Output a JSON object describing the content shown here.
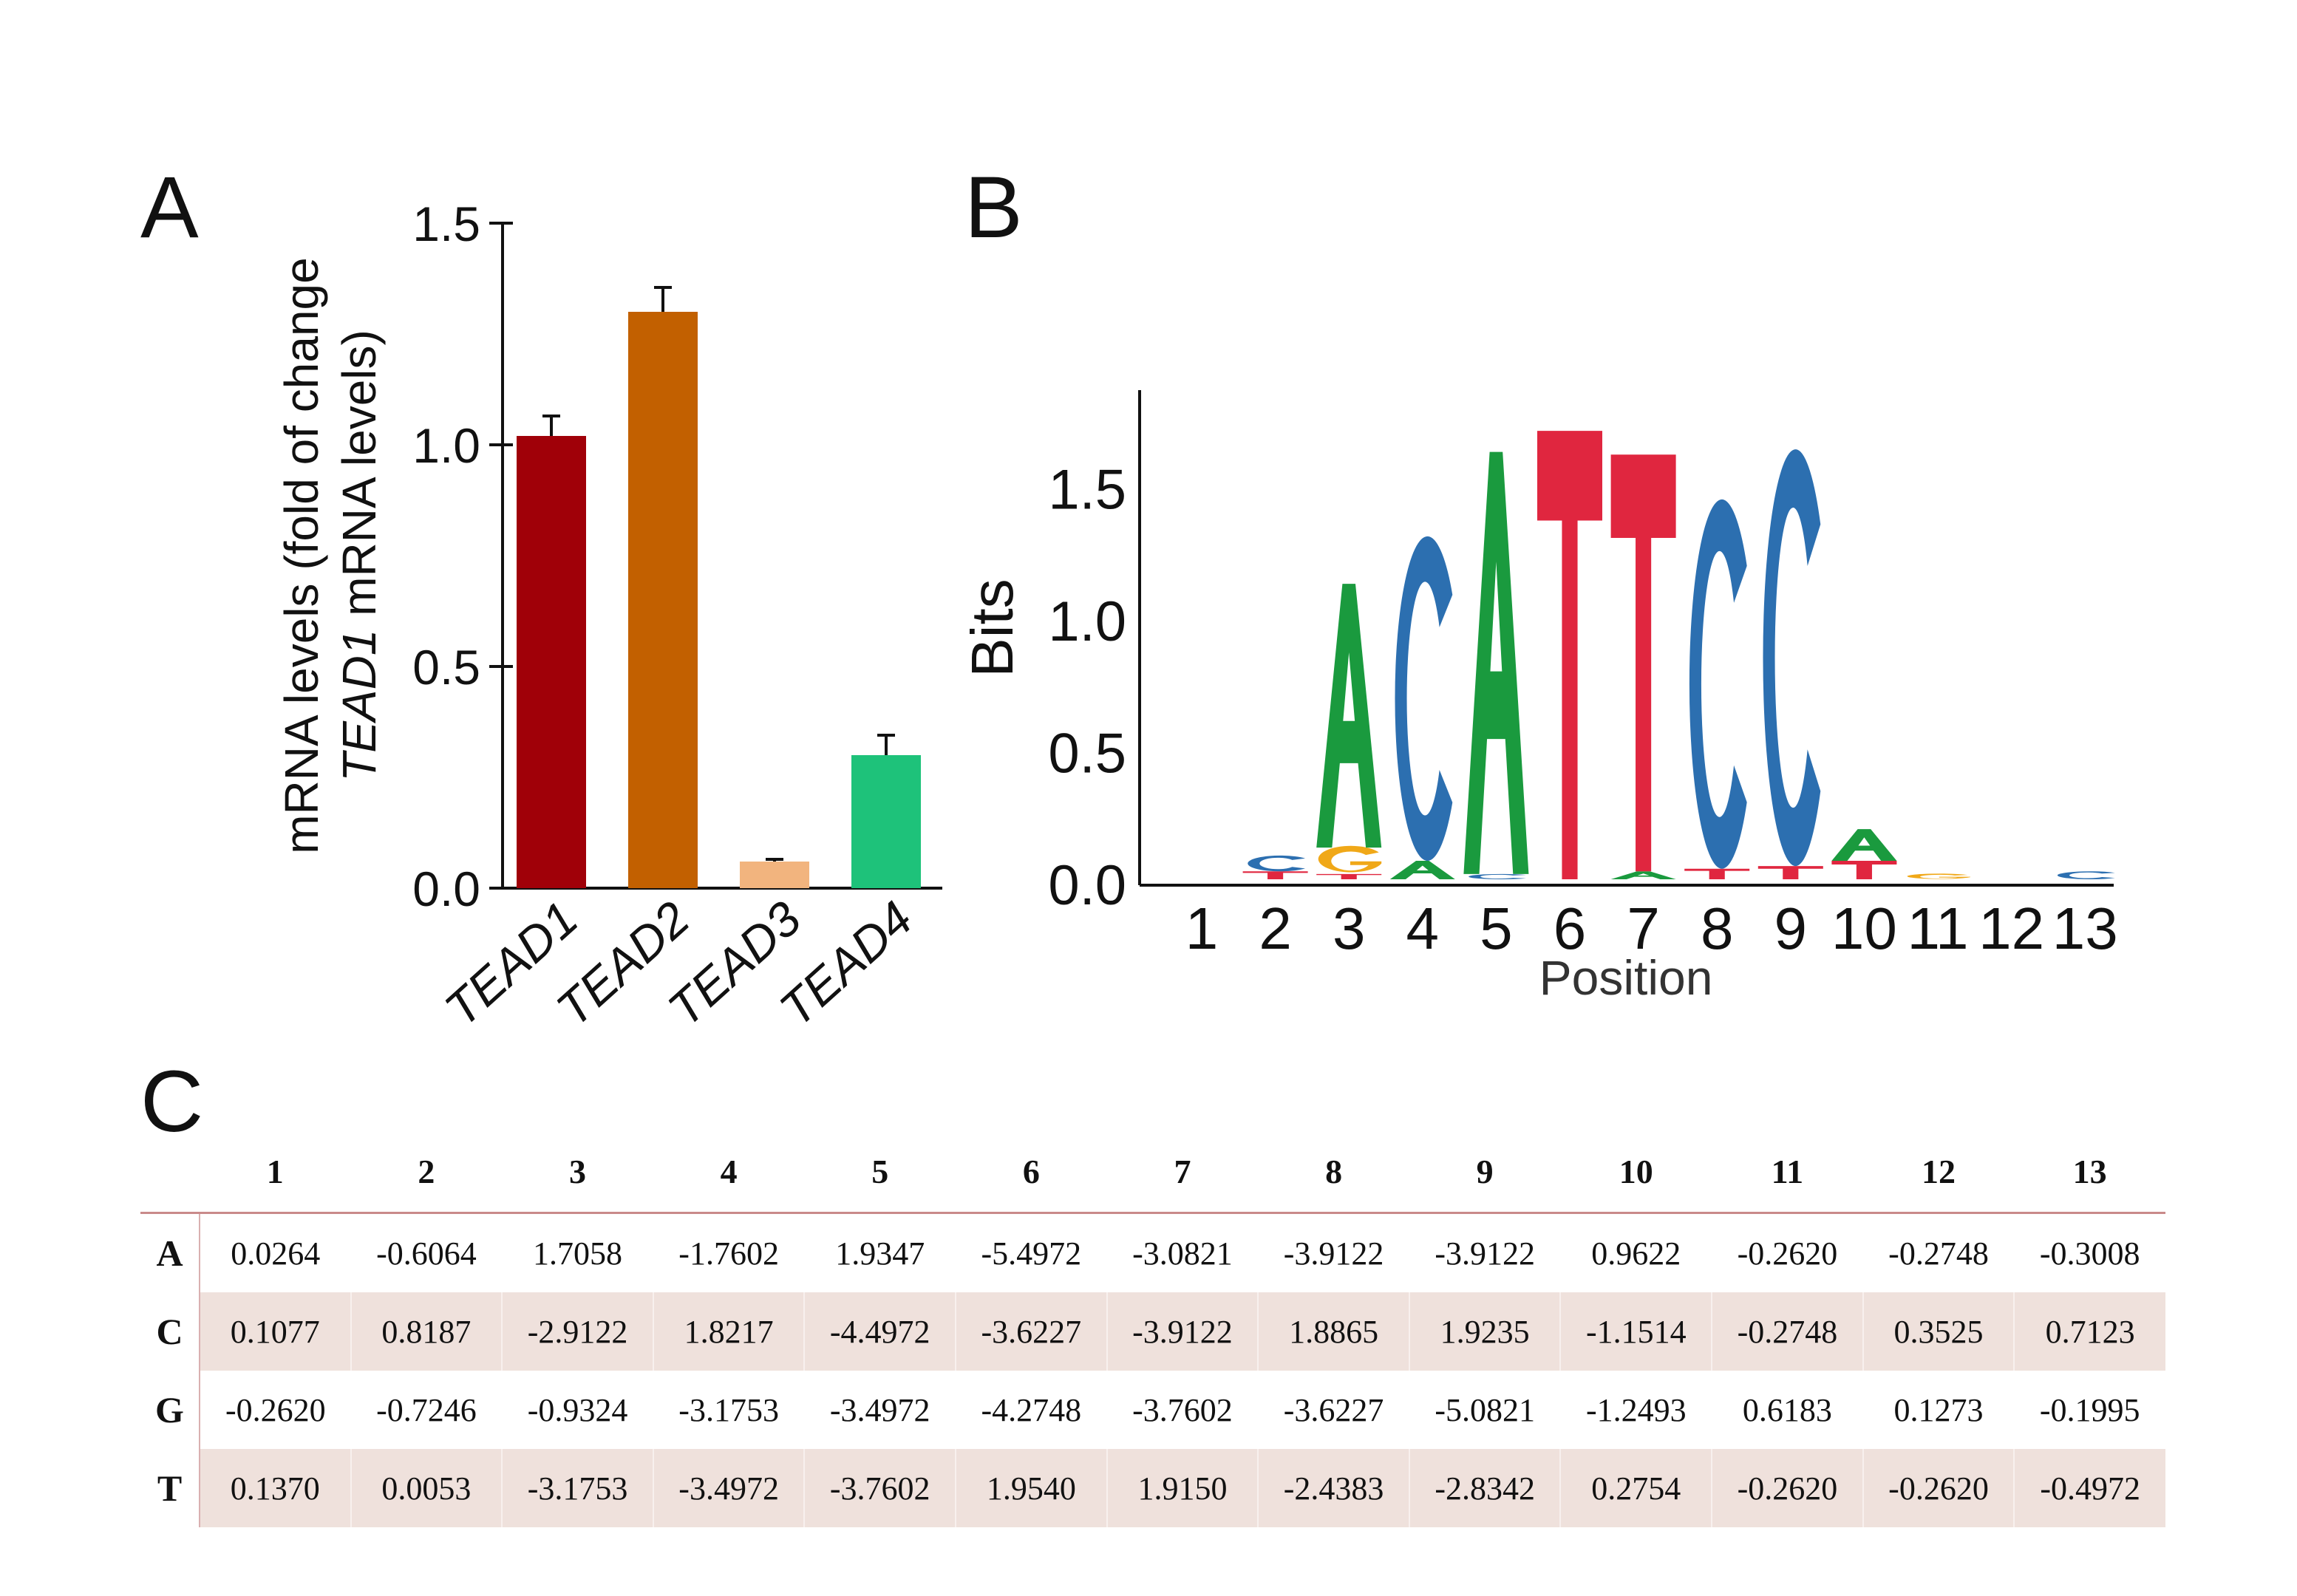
{
  "panels": {
    "a": "A",
    "b": "B",
    "c": "C"
  },
  "chart_data": [
    {
      "type": "bar",
      "categories": [
        "TEAD1",
        "TEAD2",
        "TEAD3",
        "TEAD4"
      ],
      "values": [
        1.02,
        1.3,
        0.06,
        0.3
      ],
      "errors": [
        0.045,
        0.055,
        0.005,
        0.045
      ],
      "colors": [
        "#a00008",
        "#c26000",
        "#f2b47e",
        "#1ec27a"
      ],
      "ylabel_line1": "mRNA levels (fold of change",
      "ylabel_line2_italic": "TEAD1",
      "ylabel_line2_rest": " mRNA levels)",
      "yticks": [
        "0.0",
        "0.5",
        "1.0",
        "1.5"
      ],
      "ylim": [
        0,
        1.5
      ]
    },
    {
      "type": "sequence-logo",
      "xlabel": "Position",
      "ylabel": "Bits",
      "ylim": [
        0,
        1.85
      ],
      "yticks": [
        "0.0",
        "0.5",
        "1.0",
        "1.5"
      ],
      "positions": [
        "1",
        "2",
        "3",
        "4",
        "5",
        "6",
        "7",
        "8",
        "9",
        "10",
        "11",
        "12",
        "13"
      ],
      "colors": {
        "A": "#1a9a3e",
        "C": "#2c6fb0",
        "G": "#f0a818",
        "T": "#e0263f"
      },
      "stacks": [
        [],
        [
          {
            "letter": "T",
            "bits": 0.03
          },
          {
            "letter": "C",
            "bits": 0.06
          }
        ],
        [
          {
            "letter": "T",
            "bits": 0.02
          },
          {
            "letter": "G",
            "bits": 0.1
          },
          {
            "letter": "A",
            "bits": 1.0
          }
        ],
        [
          {
            "letter": "A",
            "bits": 0.07
          },
          {
            "letter": "C",
            "bits": 1.23
          }
        ],
        [
          {
            "letter": "C",
            "bits": 0.02
          },
          {
            "letter": "A",
            "bits": 1.6
          }
        ],
        [
          {
            "letter": "T",
            "bits": 1.7
          }
        ],
        [
          {
            "letter": "A",
            "bits": 0.03
          },
          {
            "letter": "T",
            "bits": 1.58
          }
        ],
        [
          {
            "letter": "T",
            "bits": 0.04
          },
          {
            "letter": "C",
            "bits": 1.4
          }
        ],
        [
          {
            "letter": "T",
            "bits": 0.05
          },
          {
            "letter": "C",
            "bits": 1.58
          }
        ],
        [
          {
            "letter": "T",
            "bits": 0.07
          },
          {
            "letter": "A",
            "bits": 0.12
          }
        ],
        [
          {
            "letter": "G",
            "bits": 0.02
          }
        ],
        [],
        [
          {
            "letter": "C",
            "bits": 0.03
          }
        ]
      ]
    }
  ],
  "table": {
    "columns": [
      "1",
      "2",
      "3",
      "4",
      "5",
      "6",
      "7",
      "8",
      "9",
      "10",
      "11",
      "12",
      "13"
    ],
    "rows": [
      {
        "label": "A",
        "values": [
          "0.0264",
          "-0.6064",
          "1.7058",
          "-1.7602",
          "1.9347",
          "-5.4972",
          "-3.0821",
          "-3.9122",
          "-3.9122",
          "0.9622",
          "-0.2620",
          "-0.2748",
          "-0.3008"
        ]
      },
      {
        "label": "C",
        "values": [
          "0.1077",
          "0.8187",
          "-2.9122",
          "1.8217",
          "-4.4972",
          "-3.6227",
          "-3.9122",
          "1.8865",
          "1.9235",
          "-1.1514",
          "-0.2748",
          "0.3525",
          "0.7123"
        ]
      },
      {
        "label": "G",
        "values": [
          "-0.2620",
          "-0.7246",
          "-0.9324",
          "-3.1753",
          "-3.4972",
          "-4.2748",
          "-3.7602",
          "-3.6227",
          "-5.0821",
          "-1.2493",
          "0.6183",
          "0.1273",
          "-0.1995"
        ]
      },
      {
        "label": "T",
        "values": [
          "0.1370",
          "0.0053",
          "-3.1753",
          "-3.4972",
          "-3.7602",
          "1.9540",
          "1.9150",
          "-2.4383",
          "-2.8342",
          "0.2754",
          "-0.2620",
          "-0.2620",
          "-0.4972"
        ]
      }
    ]
  }
}
